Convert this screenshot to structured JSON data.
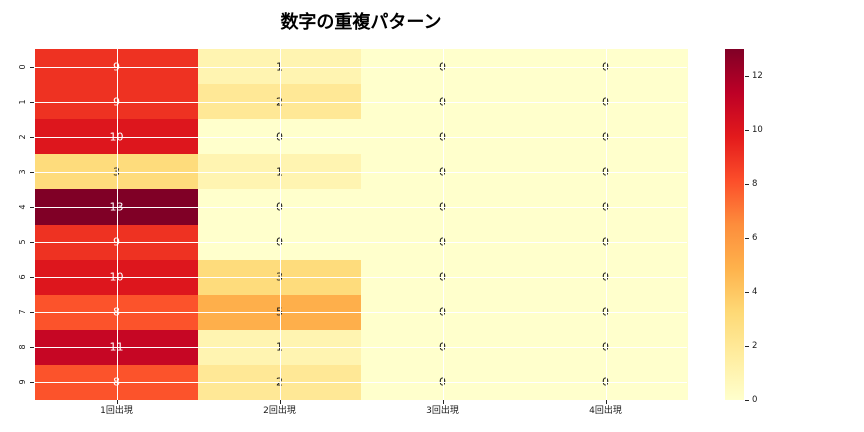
{
  "title": "数字の重複パターン",
  "colors": {
    "background": "#ffffff",
    "grid_line": "#ffffff",
    "tick_color": "#262626",
    "text_dark": "#1a1a1a",
    "text_light": "#ffffff"
  },
  "chart_data": {
    "type": "heatmap",
    "title": "数字の重複パターン",
    "row_labels": [
      "0",
      "1",
      "2",
      "3",
      "4",
      "5",
      "6",
      "7",
      "8",
      "9"
    ],
    "col_labels": [
      "1回出現",
      "2回出現",
      "3回出現",
      "4回出現"
    ],
    "values": [
      [
        9,
        1,
        0,
        0
      ],
      [
        9,
        2,
        0,
        0
      ],
      [
        10,
        0,
        0,
        0
      ],
      [
        3,
        1,
        0,
        0
      ],
      [
        13,
        0,
        0,
        0
      ],
      [
        9,
        0,
        0,
        0
      ],
      [
        10,
        3,
        0,
        0
      ],
      [
        8,
        5,
        0,
        0
      ],
      [
        11,
        1,
        0,
        0
      ],
      [
        8,
        2,
        0,
        0
      ]
    ],
    "vmin": 0,
    "vmax": 13,
    "colormap": "YlOrRd",
    "colorbar_ticks": [
      0,
      2,
      4,
      6,
      8,
      10,
      12
    ],
    "value_colors": {
      "0": "#ffffcc",
      "1": "#fff4b1",
      "2": "#ffe896",
      "3": "#fedc7c",
      "5": "#feaf4b",
      "8": "#fc532b",
      "9": "#ee3222",
      "10": "#dd161d",
      "11": "#c60624",
      "13": "#800026"
    },
    "white_text_min": 8,
    "gradient_stops": [
      "#ffffcc",
      "#ffeda0",
      "#fed976",
      "#feb24c",
      "#fd8d3c",
      "#fc4e2a",
      "#e31a1c",
      "#bd0026",
      "#800026"
    ],
    "legend_position": "right",
    "grid": true
  }
}
